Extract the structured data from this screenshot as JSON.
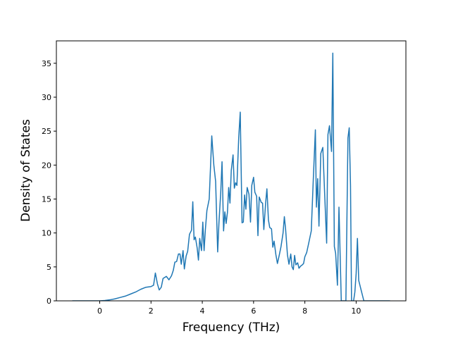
{
  "chart_data": {
    "type": "line",
    "x_label": "Frequency (THz)",
    "y_label": "Density of States",
    "x": [
      -1.07,
      0,
      0.2,
      0.4,
      0.6,
      0.8,
      1.0,
      1.2,
      1.4,
      1.6,
      1.8,
      2.0,
      2.1,
      2.17,
      2.25,
      2.32,
      2.4,
      2.47,
      2.6,
      2.7,
      2.8,
      2.87,
      2.93,
      3.0,
      3.07,
      3.13,
      3.18,
      3.25,
      3.3,
      3.37,
      3.43,
      3.5,
      3.58,
      3.63,
      3.68,
      3.73,
      3.8,
      3.85,
      3.9,
      3.97,
      4.02,
      4.07,
      4.12,
      4.18,
      4.27,
      4.37,
      4.45,
      4.52,
      4.6,
      4.65,
      4.72,
      4.77,
      4.83,
      4.88,
      4.93,
      4.98,
      5.03,
      5.08,
      5.13,
      5.2,
      5.25,
      5.3,
      5.35,
      5.42,
      5.48,
      5.55,
      5.6,
      5.65,
      5.7,
      5.75,
      5.82,
      5.88,
      5.93,
      6.0,
      6.05,
      6.12,
      6.17,
      6.22,
      6.3,
      6.35,
      6.4,
      6.47,
      6.52,
      6.58,
      6.63,
      6.7,
      6.75,
      6.8,
      6.87,
      6.93,
      7.0,
      7.07,
      7.15,
      7.2,
      7.25,
      7.32,
      7.38,
      7.45,
      7.5,
      7.55,
      7.6,
      7.65,
      7.72,
      7.77,
      7.83,
      7.9,
      7.95,
      8.0,
      8.07,
      8.15,
      8.25,
      8.33,
      8.41,
      8.45,
      8.5,
      8.55,
      8.62,
      8.7,
      8.78,
      8.85,
      8.9,
      8.96,
      9.04,
      9.09,
      9.15,
      9.2,
      9.27,
      9.33,
      9.42,
      9.6,
      9.68,
      9.73,
      9.78,
      9.82,
      9.9,
      9.95,
      10.0,
      10.05,
      10.1,
      10.2,
      10.3,
      11.32
    ],
    "series": [
      {
        "name": "DOS",
        "color": "#1f77b4",
        "values": [
          0,
          0,
          0.05,
          0.15,
          0.3,
          0.5,
          0.7,
          1.0,
          1.3,
          1.7,
          2.0,
          2.1,
          2.3,
          4.1,
          2.5,
          1.6,
          2.0,
          3.3,
          3.6,
          3.1,
          3.7,
          4.5,
          5.7,
          5.8,
          6.9,
          6.9,
          5.4,
          7.4,
          4.7,
          6.6,
          7.3,
          9.8,
          10.4,
          14.6,
          9.0,
          9.4,
          7.8,
          6.0,
          9.2,
          7.4,
          11.6,
          7.4,
          10.5,
          13.3,
          15.0,
          24.3,
          20.0,
          17.6,
          7.2,
          11.5,
          16.0,
          20.5,
          10.3,
          13.1,
          11.4,
          13.0,
          16.7,
          14.4,
          19.2,
          21.5,
          16.6,
          17.4,
          17.0,
          24.0,
          27.8,
          11.5,
          11.6,
          15.6,
          13.5,
          16.7,
          15.7,
          11.6,
          17.0,
          18.2,
          16.0,
          15.4,
          9.6,
          15.3,
          14.5,
          14.4,
          10.5,
          14.4,
          16.5,
          11.9,
          10.8,
          10.6,
          7.9,
          8.8,
          6.8,
          5.5,
          6.7,
          8.0,
          10.0,
          12.4,
          10.5,
          6.8,
          5.4,
          6.9,
          5.0,
          4.6,
          6.7,
          5.3,
          5.6,
          4.8,
          5.1,
          5.3,
          5.5,
          6.5,
          7.1,
          8.5,
          10.3,
          18.0,
          25.2,
          13.8,
          18.0,
          11.0,
          21.7,
          22.6,
          15.0,
          8.5,
          24.5,
          25.8,
          22.0,
          36.5,
          8.0,
          7.0,
          2.3,
          13.8,
          0,
          0,
          24.0,
          25.5,
          17.0,
          0,
          0,
          1.3,
          4.0,
          9.2,
          3.0,
          1.5,
          0,
          0
        ]
      }
    ],
    "xlim": [
      -1.69,
      11.94
    ],
    "ylim": [
      0,
      38.3
    ],
    "xticks": [
      0,
      2,
      4,
      6,
      8,
      10
    ],
    "yticks": [
      0,
      5,
      10,
      15,
      20,
      25,
      30,
      35
    ]
  }
}
